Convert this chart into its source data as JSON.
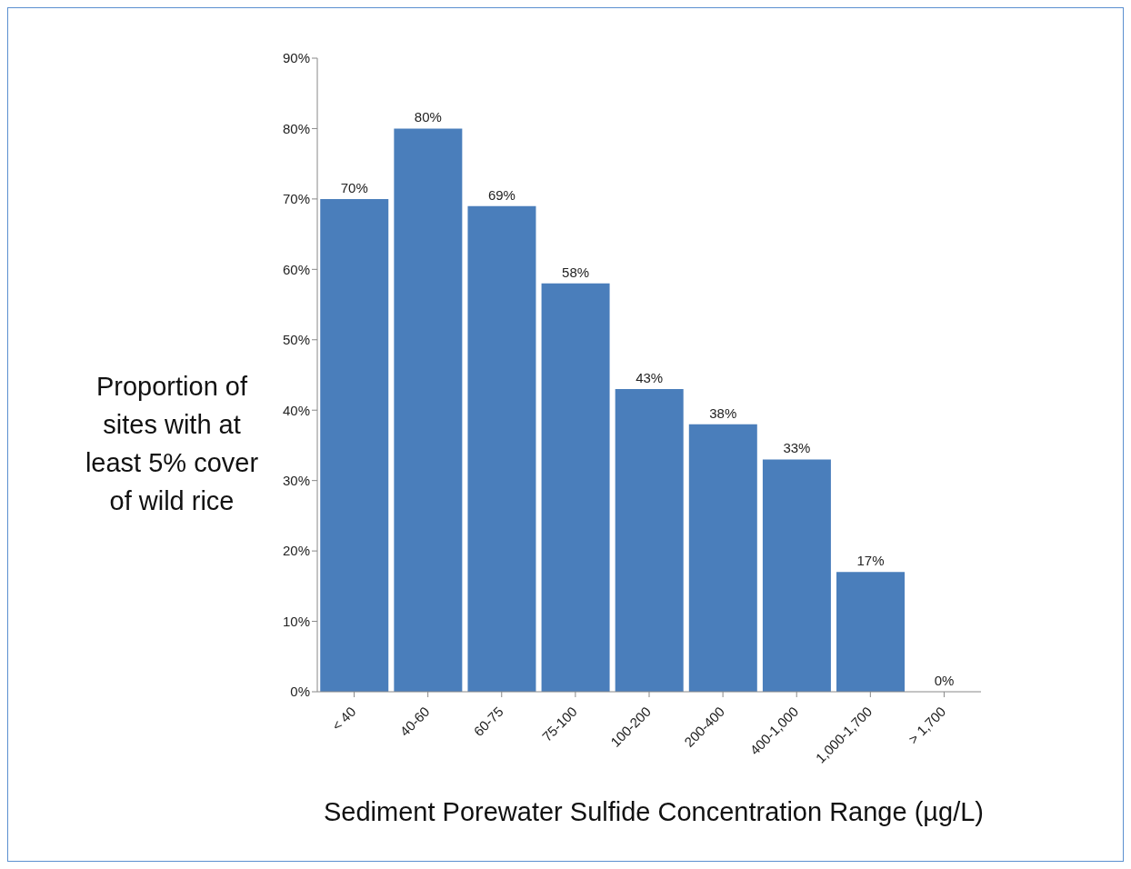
{
  "chart_data": {
    "type": "bar",
    "xlabel": "Sediment Porewater Sulfide Concentration Range (µg/L)",
    "ylabel": "Proportion of sites with at least 5% cover of wild rice",
    "categories": [
      "< 40",
      "40-60",
      "60-75",
      "75-100",
      "100-200",
      "200-400",
      "400-1,000",
      "1,000-1,700",
      "> 1,700"
    ],
    "values": [
      70,
      80,
      69,
      58,
      43,
      38,
      33,
      17,
      0
    ],
    "value_labels": [
      "70%",
      "80%",
      "69%",
      "58%",
      "43%",
      "38%",
      "33%",
      "17%",
      "0%"
    ],
    "color": "#4a7ebb",
    "ylim": [
      0,
      90
    ],
    "yticks": [
      {
        "value": 0,
        "label": "0%"
      },
      {
        "value": 10,
        "label": "10%"
      },
      {
        "value": 20,
        "label": "20%"
      },
      {
        "value": 30,
        "label": "30%"
      },
      {
        "value": 40,
        "label": "40%"
      },
      {
        "value": 50,
        "label": "50%"
      },
      {
        "value": 60,
        "label": "60%"
      },
      {
        "value": 70,
        "label": "70%"
      },
      {
        "value": 80,
        "label": "80%"
      },
      {
        "value": 90,
        "label": "90%"
      }
    ],
    "grid": false,
    "legend": false
  }
}
